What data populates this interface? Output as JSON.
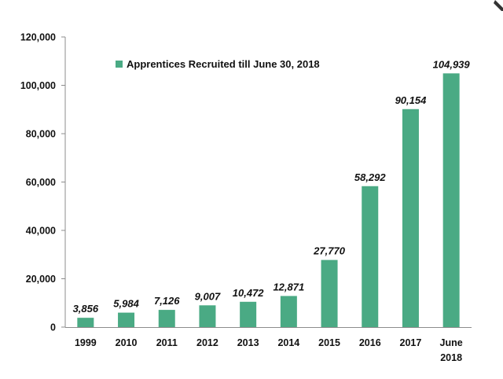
{
  "chart_data": {
    "type": "bar",
    "title": "",
    "xlabel": "",
    "ylabel": "",
    "ylim": [
      0,
      120000
    ],
    "yticks": [
      0,
      20000,
      40000,
      60000,
      80000,
      100000,
      120000
    ],
    "ytick_labels": [
      "0",
      "20,000",
      "40,000",
      "60,000",
      "80,000",
      "100,000",
      "120,000"
    ],
    "grid": false,
    "legend_position": "top-left",
    "bar_color": "#4aaa84",
    "categories": [
      [
        "1999"
      ],
      [
        "2010"
      ],
      [
        "2011"
      ],
      [
        "2012"
      ],
      [
        "2013"
      ],
      [
        "2014"
      ],
      [
        "2015"
      ],
      [
        "2016"
      ],
      [
        "2017"
      ],
      [
        "June",
        "2018"
      ]
    ],
    "series": [
      {
        "name": "Apprentices Recruited till June 30, 2018",
        "values": [
          3856,
          5984,
          7126,
          9007,
          10472,
          12871,
          27770,
          58292,
          90154,
          104939
        ],
        "labels": [
          "3,856",
          "5,984",
          "7,126",
          "9,007",
          "10,472",
          "12,871",
          "27,770",
          "58,292",
          "90,154",
          "104,939"
        ]
      }
    ]
  }
}
